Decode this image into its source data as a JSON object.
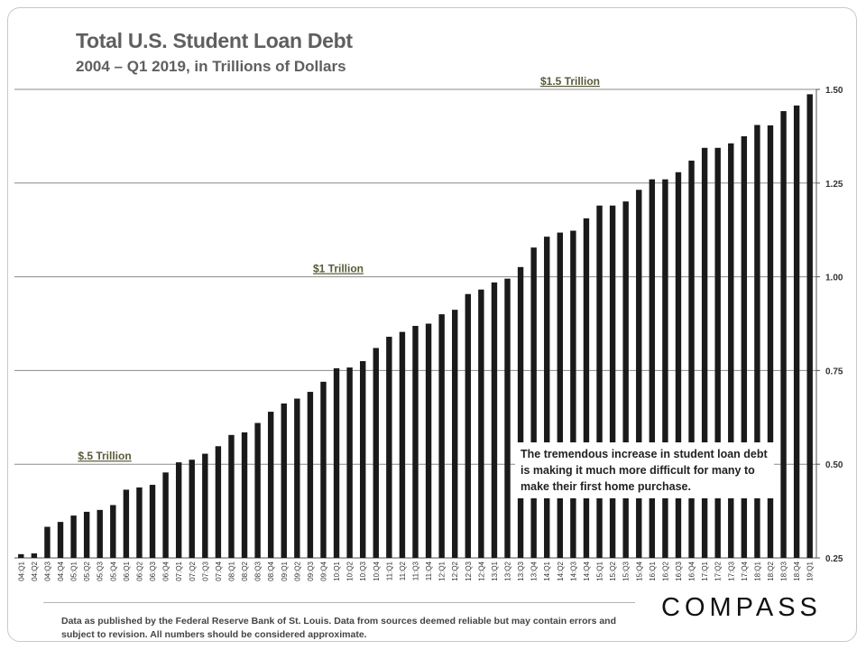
{
  "header": {
    "title": "Total U.S. Student Loan Debt",
    "subtitle": "2004 – Q1 2019, in Trillions  of Dollars"
  },
  "callout": "The tremendous increase in student loan debt is making it much more difficult for many to make their first home purchase.",
  "footnote": "Data as published by the Federal Reserve Bank of St. Louis. Data from sources deemed reliable but may contain errors and subject to revision. All numbers should be considered approximate.",
  "logo": "COMPASS",
  "colors": {
    "bar": "#1a1a1a",
    "grid": "#8a8a8a",
    "title": "#5f5f5f",
    "annotation": "#5a5a3a"
  },
  "chart_data": {
    "type": "bar",
    "title": "Total U.S. Student Loan Debt",
    "subtitle": "2004 – Q1 2019, in Trillions  of Dollars",
    "xlabel": "",
    "ylabel": "",
    "ylim": [
      0.25,
      1.5
    ],
    "yticks": [
      0.25,
      0.5,
      0.75,
      1.0,
      1.25,
      1.5
    ],
    "ytick_labels": [
      "0.25",
      "0.50",
      "0.75",
      "1.00",
      "1.25",
      "1.50"
    ],
    "y_axis_position": "right",
    "grid": true,
    "categories": [
      "04:Q1",
      "04:Q2",
      "04:Q3",
      "04:Q4",
      "05:Q1",
      "05:Q2",
      "05:Q3",
      "05:Q4",
      "06:Q1",
      "06:Q2",
      "06:Q3",
      "06:Q4",
      "07:Q1",
      "07:Q2",
      "07:Q3",
      "07:Q4",
      "08:Q1",
      "08:Q2",
      "08:Q3",
      "08:Q4",
      "09:Q1",
      "09:Q2",
      "09:Q3",
      "09:Q4",
      "10:Q1",
      "10:Q2",
      "10:Q3",
      "10:Q4",
      "11:Q1",
      "11:Q2",
      "11:Q3",
      "11:Q4",
      "12:Q1",
      "12:Q2",
      "12:Q3",
      "12:Q4",
      "13:Q1",
      "13:Q2",
      "13:Q3",
      "13:Q4",
      "14:Q1",
      "14:Q2",
      "14:Q3",
      "14:Q4",
      "15:Q1",
      "15:Q2",
      "15:Q3",
      "15:Q4",
      "16:Q1",
      "16:Q2",
      "16:Q3",
      "16:Q4",
      "17:Q1",
      "17:Q2",
      "17:Q3",
      "17:Q4",
      "18:Q1",
      "18:Q2",
      "18:Q3",
      "18:Q4",
      "19:Q1"
    ],
    "values": [
      0.26,
      0.262,
      0.333,
      0.346,
      0.363,
      0.373,
      0.378,
      0.391,
      0.432,
      0.438,
      0.445,
      0.478,
      0.505,
      0.512,
      0.528,
      0.548,
      0.578,
      0.585,
      0.61,
      0.64,
      0.662,
      0.675,
      0.693,
      0.72,
      0.756,
      0.758,
      0.775,
      0.81,
      0.84,
      0.853,
      0.869,
      0.875,
      0.9,
      0.912,
      0.954,
      0.966,
      0.985,
      0.995,
      1.026,
      1.078,
      1.107,
      1.118,
      1.123,
      1.156,
      1.19,
      1.19,
      1.201,
      1.232,
      1.26,
      1.26,
      1.279,
      1.31,
      1.344,
      1.344,
      1.356,
      1.375,
      1.405,
      1.404,
      1.442,
      1.457,
      1.487
    ],
    "annotations": [
      {
        "text": "$.5 Trillion",
        "value": 0.5
      },
      {
        "text": "$1 Trillion",
        "value": 1.0
      },
      {
        "text": "$1.5 Trillion",
        "value": 1.5
      }
    ]
  }
}
